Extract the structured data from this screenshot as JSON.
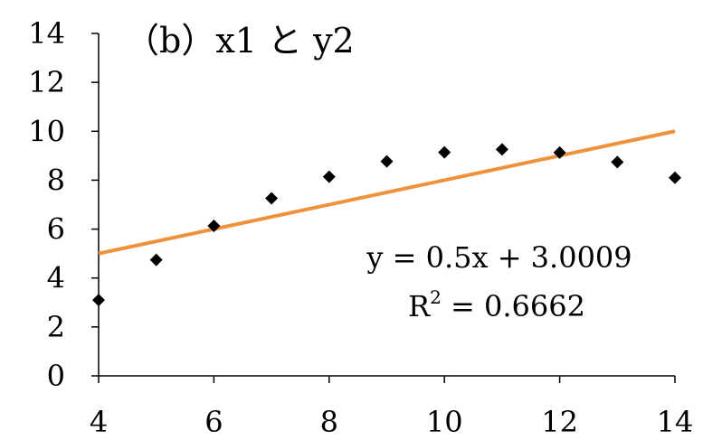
{
  "chart_data": {
    "type": "scatter",
    "title": "（b）x1 と y2",
    "xlim": [
      4,
      14
    ],
    "ylim": [
      0,
      14
    ],
    "x_ticks": [
      4,
      6,
      8,
      10,
      12,
      14
    ],
    "y_ticks": [
      0,
      2,
      4,
      6,
      8,
      10,
      12,
      14
    ],
    "grid": false,
    "legend": "none",
    "series": [
      {
        "marker": "diamond",
        "color": "#000000",
        "x": [
          4,
          5,
          6,
          7,
          8,
          9,
          10,
          11,
          12,
          13,
          14
        ],
        "y": [
          3.1,
          4.74,
          6.13,
          7.26,
          8.14,
          8.77,
          9.14,
          9.26,
          9.13,
          8.74,
          8.1
        ]
      }
    ],
    "trendline": {
      "slope": 0.5,
      "intercept": 3.0009,
      "color": "#F0923B",
      "equation_text": "y = 0.5x + 3.0009",
      "r2_prefix": "R",
      "r2_exponent": "2",
      "r2_suffix": " = 0.6662"
    }
  }
}
